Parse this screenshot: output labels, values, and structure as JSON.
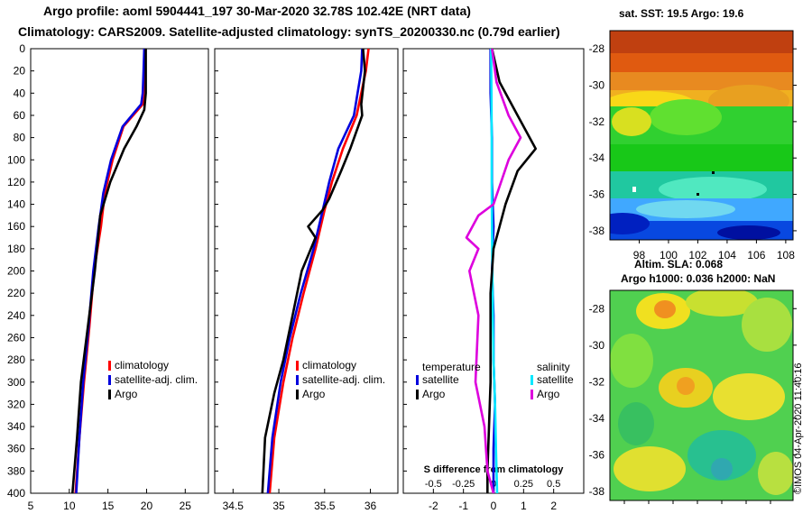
{
  "header": {
    "title_line1": "Argo profile: aoml 5904441_197 30-Mar-2020 32.78S 102.42E (NRT data)",
    "title_line2": "Climatology: CARS2009. Satellite-adjusted climatology: synTS_20200330.nc (0.79d earlier)"
  },
  "colors": {
    "climatology": "#ff0000",
    "satellite_adj": "#0000dd",
    "argo": "#000000",
    "temperature_sat": "#0000dd",
    "salinity_sat": "#00e8ff",
    "salinity_argo": "#dd00dd"
  },
  "chart_data": [
    {
      "type": "line",
      "name": "temperature-profile",
      "xlabel": "",
      "ylabel": "",
      "xlim": [
        5,
        28
      ],
      "ylim": [
        400,
        0
      ],
      "xticks": [
        5,
        10,
        15,
        20,
        25
      ],
      "yticks": [
        0,
        20,
        40,
        60,
        80,
        100,
        120,
        140,
        160,
        180,
        200,
        220,
        240,
        260,
        280,
        300,
        320,
        340,
        360,
        380,
        400
      ],
      "legend": [
        "climatology",
        "satellite-adj. clim.",
        "Argo"
      ],
      "series": [
        {
          "name": "climatology",
          "color": "#ff0000",
          "x": [
            19.7,
            19.7,
            19.6,
            19.5,
            17,
            15.6,
            14.6,
            14.1,
            13.2,
            12.6,
            11.9,
            11.3,
            10.8
          ],
          "y": [
            0,
            20,
            40,
            50,
            70,
            100,
            130,
            160,
            200,
            250,
            300,
            350,
            400
          ]
        },
        {
          "name": "satellite-adj. clim.",
          "color": "#0000dd",
          "x": [
            19.7,
            19.6,
            19.5,
            19.3,
            16.9,
            15.4,
            14.4,
            13.8,
            13.1,
            12.5,
            11.8,
            11.3,
            10.9
          ],
          "y": [
            0,
            20,
            40,
            50,
            70,
            100,
            130,
            160,
            200,
            250,
            300,
            350,
            400
          ]
        },
        {
          "name": "Argo",
          "color": "#000000",
          "x": [
            19.9,
            19.9,
            19.9,
            19.7,
            18.7,
            17.1,
            15.3,
            14.0,
            13.3,
            12.4,
            11.5,
            11.0,
            10.4
          ],
          "y": [
            0,
            20,
            40,
            55,
            70,
            90,
            120,
            150,
            200,
            250,
            300,
            350,
            400
          ]
        }
      ]
    },
    {
      "type": "line",
      "name": "salinity-profile",
      "xlabel": "",
      "ylabel": "",
      "xlim": [
        34.3,
        36.3
      ],
      "ylim": [
        400,
        0
      ],
      "xticks": [
        34.5,
        35,
        35.5,
        36
      ],
      "legend": [
        "climatology",
        "satellite-adj. clim.",
        "Argo"
      ],
      "series": [
        {
          "name": "climatology",
          "color": "#ff0000",
          "x": [
            35.98,
            35.95,
            35.9,
            35.85,
            35.7,
            35.58,
            35.5,
            35.4,
            35.27,
            35.15,
            35.05,
            34.95,
            34.9
          ],
          "y": [
            0,
            20,
            40,
            60,
            90,
            120,
            145,
            180,
            220,
            260,
            300,
            350,
            400
          ]
        },
        {
          "name": "satellite-adj. clim.",
          "color": "#0000dd",
          "x": [
            35.91,
            35.9,
            35.86,
            35.82,
            35.65,
            35.55,
            35.48,
            35.38,
            35.24,
            35.12,
            35.02,
            34.93,
            34.88
          ],
          "y": [
            0,
            20,
            40,
            60,
            90,
            120,
            145,
            180,
            220,
            260,
            300,
            350,
            400
          ]
        },
        {
          "name": "Argo",
          "color": "#000000",
          "x": [
            35.92,
            35.94,
            35.9,
            35.91,
            35.78,
            35.68,
            35.55,
            35.48,
            35.32,
            35.4,
            35.25,
            35.15,
            35.05,
            34.95,
            34.85,
            34.82
          ],
          "y": [
            0,
            20,
            50,
            60,
            90,
            110,
            135,
            145,
            160,
            170,
            200,
            240,
            280,
            310,
            350,
            400
          ]
        }
      ]
    },
    {
      "type": "line",
      "name": "difference-profile",
      "xlim": [
        -3,
        3
      ],
      "ylim": [
        400,
        0
      ],
      "xticks": [
        -2,
        -1,
        0,
        1,
        2
      ],
      "secondary_xticks": [
        -0.5,
        -0.25,
        0,
        0.25,
        0.5
      ],
      "secondary_xlabel": "S difference from climatology",
      "legend_temperature": {
        "title": "temperature",
        "items": [
          "satellite",
          "Argo"
        ]
      },
      "legend_salinity": {
        "title": "salinity",
        "items": [
          "satellite",
          "Argo"
        ]
      },
      "series": [
        {
          "name": "temperature satellite",
          "color": "#0000dd",
          "x": [
            -0.1,
            -0.1,
            -0.05,
            -0.05,
            0,
            -0.05,
            0,
            0,
            0.05,
            0,
            0
          ],
          "y": [
            0,
            40,
            80,
            120,
            160,
            200,
            240,
            280,
            320,
            360,
            400
          ]
        },
        {
          "name": "salinity satellite",
          "color": "#00e8ff",
          "x": [
            -0.08,
            -0.07,
            -0.06,
            -0.06,
            -0.05,
            -0.04,
            -0.02,
            0,
            0.05,
            0.08,
            0.12
          ],
          "y": [
            0,
            40,
            80,
            120,
            160,
            200,
            240,
            280,
            320,
            360,
            400
          ]
        },
        {
          "name": "temperature Argo",
          "color": "#000000",
          "x": [
            -0.05,
            0.2,
            0.7,
            1.4,
            0.8,
            0.4,
            0.2,
            0,
            -0.1,
            -0.1,
            -0.1,
            -0.15,
            -0.2,
            -0.2
          ],
          "y": [
            0,
            30,
            55,
            90,
            110,
            140,
            160,
            180,
            220,
            260,
            300,
            340,
            380,
            400
          ]
        },
        {
          "name": "salinity Argo",
          "color": "#dd00dd",
          "x": [
            -0.05,
            0.1,
            0.5,
            0.9,
            0.5,
            0,
            -0.5,
            -0.9,
            -0.5,
            -0.8,
            -0.5,
            -0.6,
            -0.3,
            -0.2,
            0
          ],
          "y": [
            0,
            30,
            60,
            80,
            100,
            140,
            150,
            170,
            180,
            200,
            240,
            300,
            340,
            380,
            400
          ]
        }
      ]
    },
    {
      "type": "heatmap",
      "name": "sst-map",
      "title": "sat. SST: 19.5 Argo: 19.6",
      "xticks": [
        98,
        100,
        102,
        104,
        106,
        108
      ],
      "yticks": [
        -28,
        -30,
        -32,
        -34,
        -36,
        -38
      ],
      "xlim": [
        96,
        108.5
      ],
      "ylim": [
        -38.5,
        -27
      ]
    },
    {
      "type": "heatmap",
      "name": "sla-map",
      "title_line1": "Altim. SLA: 0.068",
      "title_line2": "Argo h1000: 0.036 h2000: NaN",
      "yticks": [
        -28,
        -30,
        -32,
        -34,
        -36,
        -38
      ],
      "ylim": [
        -38.5,
        -27
      ]
    }
  ],
  "footer": {
    "stamp": "©IMOS 04-Apr-2020 11:40:16"
  }
}
